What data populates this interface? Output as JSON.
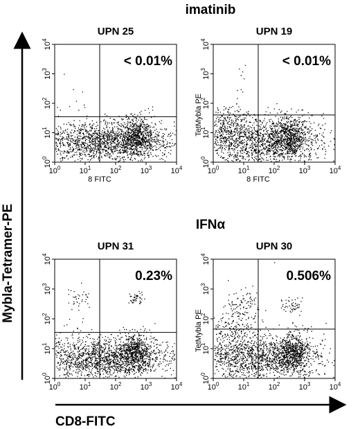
{
  "chart_data": {
    "type": "scatter",
    "xlabel": "CD8-FITC",
    "ylabel": "Mybla-Tetramer-PE",
    "x_scale": "log",
    "y_scale": "log",
    "xlim": [
      1,
      10000
    ],
    "ylim": [
      1,
      10000
    ],
    "tick_values": [
      1,
      10,
      100,
      1000,
      10000
    ],
    "groups": [
      {
        "label": "imatinib",
        "panels": [
          {
            "title": "UPN 25",
            "quadrant_pct": "< 0.01%",
            "inner_xlabel": "8 FITC",
            "inner_ylabel": "",
            "gate": {
              "x": 30,
              "y": 35
            },
            "clusters": [
              {
                "x": 40,
                "y": 5,
                "sx": 1.2,
                "sy": 0.35,
                "n": 1700
              },
              {
                "x": 500,
                "y": 8,
                "sx": 0.25,
                "sy": 0.3,
                "n": 500
              }
            ],
            "sparse": [
              [
                1.5,
                60
              ],
              [
                3,
                80
              ],
              [
                5,
                120
              ],
              [
                8,
                250
              ],
              [
                2,
                1000
              ],
              [
                4,
                300
              ],
              [
                6,
                60
              ],
              [
                9,
                90
              ]
            ]
          },
          {
            "title": "UPN 19",
            "quadrant_pct": "< 0.01%",
            "inner_xlabel": "8 FITC",
            "inner_ylabel": "TetMybla PE",
            "gate": {
              "x": 30,
              "y": 40
            },
            "clusters": [
              {
                "x": 30,
                "y": 5,
                "sx": 1.1,
                "sy": 0.4,
                "n": 1500
              },
              {
                "x": 300,
                "y": 8,
                "sx": 0.3,
                "sy": 0.35,
                "n": 600
              },
              {
                "x": 3,
                "y": 20,
                "sx": 0.35,
                "sy": 0.3,
                "n": 200
              }
            ],
            "sparse": [
              [
                8,
                900
              ],
              [
                9,
                1200
              ],
              [
                10,
                700
              ],
              [
                7,
                1500
              ],
              [
                11,
                2000
              ],
              [
                8,
                300
              ],
              [
                6,
                150
              ],
              [
                9,
                250
              ]
            ]
          }
        ]
      },
      {
        "label": "IFNα",
        "panels": [
          {
            "title": "UPN 31",
            "quadrant_pct": "0.23%",
            "inner_xlabel": "",
            "inner_ylabel": "",
            "gate": {
              "x": 30,
              "y": 35
            },
            "clusters": [
              {
                "x": 40,
                "y": 5,
                "sx": 1.2,
                "sy": 0.35,
                "n": 1700
              },
              {
                "x": 450,
                "y": 8,
                "sx": 0.25,
                "sy": 0.3,
                "n": 500
              },
              {
                "x": 450,
                "y": 500,
                "sx": 0.12,
                "sy": 0.1,
                "n": 45
              },
              {
                "x": 7,
                "y": 500,
                "sx": 0.25,
                "sy": 0.2,
                "n": 35
              }
            ],
            "sparse": [
              [
                3,
                100
              ],
              [
                6,
                200
              ],
              [
                2,
                60
              ],
              [
                8,
                80
              ],
              [
                4,
                40
              ]
            ]
          },
          {
            "title": "UPN 30",
            "quadrant_pct": "0.506%",
            "inner_xlabel": "",
            "inner_ylabel": "TetMybla PE",
            "gate": {
              "x": 30,
              "y": 45
            },
            "clusters": [
              {
                "x": 30,
                "y": 5,
                "sx": 1.1,
                "sy": 0.4,
                "n": 1500
              },
              {
                "x": 400,
                "y": 8,
                "sx": 0.25,
                "sy": 0.3,
                "n": 550
              },
              {
                "x": 10,
                "y": 300,
                "sx": 0.25,
                "sy": 0.25,
                "n": 90
              },
              {
                "x": 350,
                "y": 300,
                "sx": 0.15,
                "sy": 0.12,
                "n": 50
              },
              {
                "x": 5,
                "y": 40,
                "sx": 0.4,
                "sy": 0.35,
                "n": 150
              }
            ],
            "sparse": [
              [
                100,
                8000
              ],
              [
                3,
                2000
              ],
              [
                2,
                150
              ]
            ]
          }
        ]
      }
    ]
  }
}
